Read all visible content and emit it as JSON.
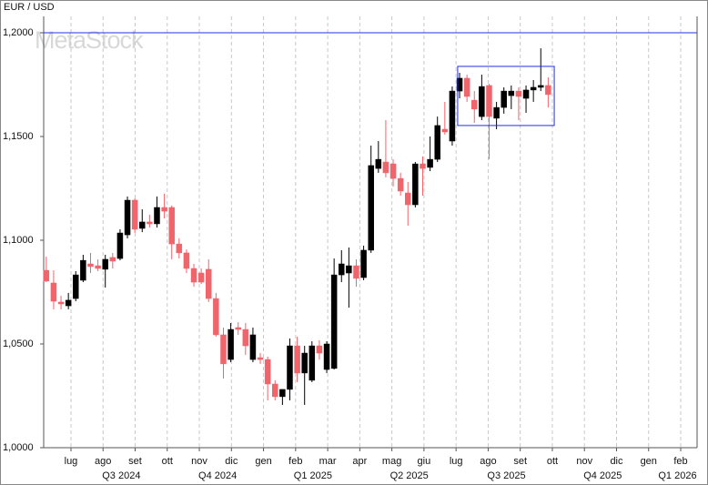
{
  "chart_data": {
    "type": "candlestick",
    "title": "EUR / USD",
    "watermark": "MetaStock",
    "up_color": "#000000",
    "down_color": "#f0646c",
    "grid": true,
    "ylim": [
      1.0,
      1.2079
    ],
    "yticks": [
      {
        "value": 1.0,
        "label": "1,0000"
      },
      {
        "value": 1.05,
        "label": "1,0500"
      },
      {
        "value": 1.1,
        "label": "1,1000"
      },
      {
        "value": 1.15,
        "label": "1,1500"
      },
      {
        "value": 1.2,
        "label": "1,2000"
      }
    ],
    "xlim": [
      -0.85,
      19.51
    ],
    "xticks": [
      {
        "value": 0,
        "label": "lug"
      },
      {
        "value": 1,
        "label": "ago"
      },
      {
        "value": 2,
        "label": "set"
      },
      {
        "value": 3,
        "label": "ott"
      },
      {
        "value": 4,
        "label": "nov"
      },
      {
        "value": 5,
        "label": "dic"
      },
      {
        "value": 6,
        "label": "gen"
      },
      {
        "value": 7,
        "label": "feb"
      },
      {
        "value": 8,
        "label": "mar"
      },
      {
        "value": 9,
        "label": "apr"
      },
      {
        "value": 10,
        "label": "mag"
      },
      {
        "value": 11,
        "label": "giu"
      },
      {
        "value": 12,
        "label": "lug"
      },
      {
        "value": 13,
        "label": "ago"
      },
      {
        "value": 14,
        "label": "set"
      },
      {
        "value": 15,
        "label": "ott"
      },
      {
        "value": 16,
        "label": "nov"
      },
      {
        "value": 17,
        "label": "dic"
      },
      {
        "value": 18,
        "label": "gen"
      },
      {
        "value": 19,
        "label": "feb"
      }
    ],
    "xticks2": [
      {
        "value": 1.57,
        "label": "Q3 2024"
      },
      {
        "value": 4.57,
        "label": "Q4 2024"
      },
      {
        "value": 7.54,
        "label": "Q1 2025"
      },
      {
        "value": 10.54,
        "label": "Q2 2025"
      },
      {
        "value": 13.57,
        "label": "Q3 2025"
      },
      {
        "value": 16.57,
        "label": "Q4 2025"
      },
      {
        "value": 18.9,
        "label": "Q1 2026"
      }
    ],
    "hline": {
      "value": 1.2,
      "color": "#2030e0"
    },
    "box": {
      "x": [
        12.05,
        15.06
      ],
      "y": [
        1.1553,
        1.1838
      ],
      "color": "#2030e0"
    },
    "x": [
      -0.77,
      -0.54,
      -0.31,
      -0.08,
      0.15,
      0.38,
      0.61,
      0.84,
      1.07,
      1.3,
      1.53,
      1.76,
      1.99,
      2.22,
      2.45,
      2.68,
      2.91,
      3.14,
      3.37,
      3.6,
      3.83,
      4.06,
      4.29,
      4.52,
      4.75,
      4.98,
      5.21,
      5.44,
      5.67,
      5.9,
      6.13,
      6.36,
      6.59,
      6.82,
      7.05,
      7.28,
      7.51,
      7.74,
      7.97,
      8.2,
      8.43,
      8.66,
      8.89,
      9.12,
      9.35,
      9.58,
      9.81,
      10.04,
      10.27,
      10.5,
      10.73,
      10.96,
      11.19,
      11.42,
      11.65,
      11.88,
      12.11,
      12.34,
      12.57,
      12.8,
      13.03,
      13.26,
      13.49,
      13.72,
      13.95,
      14.18,
      14.41,
      14.64,
      14.87
    ],
    "open": [
      1.0855,
      1.0794,
      1.0702,
      1.0684,
      1.0719,
      1.0807,
      1.0886,
      1.0877,
      1.086,
      1.0917,
      1.0912,
      1.1026,
      1.1193,
      1.1057,
      1.1088,
      1.1079,
      1.1158,
      1.1158,
      1.0982,
      1.0939,
      1.0864,
      1.0842,
      1.086,
      1.0719,
      1.0544,
      1.0425,
      1.0579,
      1.057,
      1.0425,
      1.0434,
      1.0425,
      1.0307,
      1.0246,
      1.0281,
      1.0491,
      1.036,
      1.0325,
      1.0491,
      1.0377,
      1.0382,
      1.0833,
      1.0842,
      1.0877,
      1.082,
      1.0952,
      1.1346,
      1.1377,
      1.1368,
      1.1298,
      1.1228,
      1.1171,
      1.1368,
      1.1351,
      1.139,
      1.1535,
      1.1478,
      1.1719,
      1.1781,
      1.1675,
      1.1596,
      1.1746,
      1.1588,
      1.164,
      1.1697,
      1.1719,
      1.1684,
      1.1724,
      1.1737,
      1.1746
    ],
    "high": [
      1.0921,
      1.0855,
      1.0732,
      1.0746,
      1.0851,
      1.093,
      1.0939,
      1.0908,
      1.093,
      1.0939,
      1.1053,
      1.1211,
      1.1202,
      1.1149,
      1.1123,
      1.1211,
      1.1224,
      1.1167,
      1.1009,
      1.0956,
      1.0886,
      1.0864,
      1.0908,
      1.0746,
      1.0579,
      1.0601,
      1.0605,
      1.0601,
      1.0579,
      1.0456,
      1.0439,
      1.0325,
      1.0281,
      1.0526,
      1.0535,
      1.0491,
      1.0513,
      1.0518,
      1.0513,
      1.0912,
      1.0952,
      1.0965,
      1.0908,
      1.0974,
      1.1456,
      1.1478,
      1.1579,
      1.139,
      1.1325,
      1.1281,
      1.1377,
      1.1404,
      1.15,
      1.1596,
      1.1667,
      1.1741,
      1.1807,
      1.1798,
      1.1719,
      1.1798,
      1.1754,
      1.1667,
      1.1737,
      1.1746,
      1.1737,
      1.1746,
      1.1772,
      1.1925,
      1.1785
    ],
    "low": [
      1.0798,
      1.0667,
      1.0667,
      1.0667,
      1.0706,
      1.0798,
      1.0842,
      1.0851,
      1.0772,
      1.0864,
      1.0903,
      1.1009,
      1.1035,
      1.1039,
      1.1061,
      1.1061,
      1.1105,
      1.0908,
      1.0912,
      1.0842,
      1.0776,
      1.0789,
      1.0702,
      1.0535,
      1.0333,
      1.0412,
      1.0544,
      1.0447,
      1.0412,
      1.0404,
      1.0228,
      1.0228,
      1.0206,
      1.0228,
      1.0316,
      1.0206,
      1.0316,
      1.0425,
      1.036,
      1.0377,
      1.0798,
      1.0675,
      1.0776,
      1.0807,
      1.0939,
      1.1325,
      1.1303,
      1.1259,
      1.1215,
      1.107,
      1.1158,
      1.1215,
      1.1333,
      1.1377,
      1.1509,
      1.1456,
      1.1684,
      1.1667,
      1.1566,
      1.1579,
      1.139,
      1.1535,
      1.161,
      1.1632,
      1.1579,
      1.1614,
      1.1667,
      1.1719,
      1.164
    ],
    "close": [
      1.0803,
      1.0706,
      1.0693,
      1.0711,
      1.0833,
      1.0903,
      1.0873,
      1.0864,
      1.0908,
      1.0899,
      1.1035,
      1.1193,
      1.1053,
      1.1088,
      1.1079,
      1.1158,
      1.114,
      1.0982,
      1.0939,
      1.0864,
      1.0798,
      1.0798,
      1.0719,
      1.0544,
      1.0404,
      1.057,
      1.057,
      1.0491,
      1.0544,
      1.0425,
      1.0307,
      1.0246,
      1.0281,
      1.0491,
      1.036,
      1.0456,
      1.0491,
      1.0456,
      1.05,
      1.0833,
      1.0886,
      1.0877,
      1.0816,
      1.0952,
      1.136,
      1.139,
      1.1325,
      1.1298,
      1.1237,
      1.1171,
      1.1368,
      1.1346,
      1.139,
      1.1553,
      1.1522,
      1.1719,
      1.1781,
      1.1693,
      1.1632,
      1.1741,
      1.1596,
      1.164,
      1.1719,
      1.1719,
      1.1693,
      1.1724,
      1.1737,
      1.1746,
      1.1702
    ]
  }
}
